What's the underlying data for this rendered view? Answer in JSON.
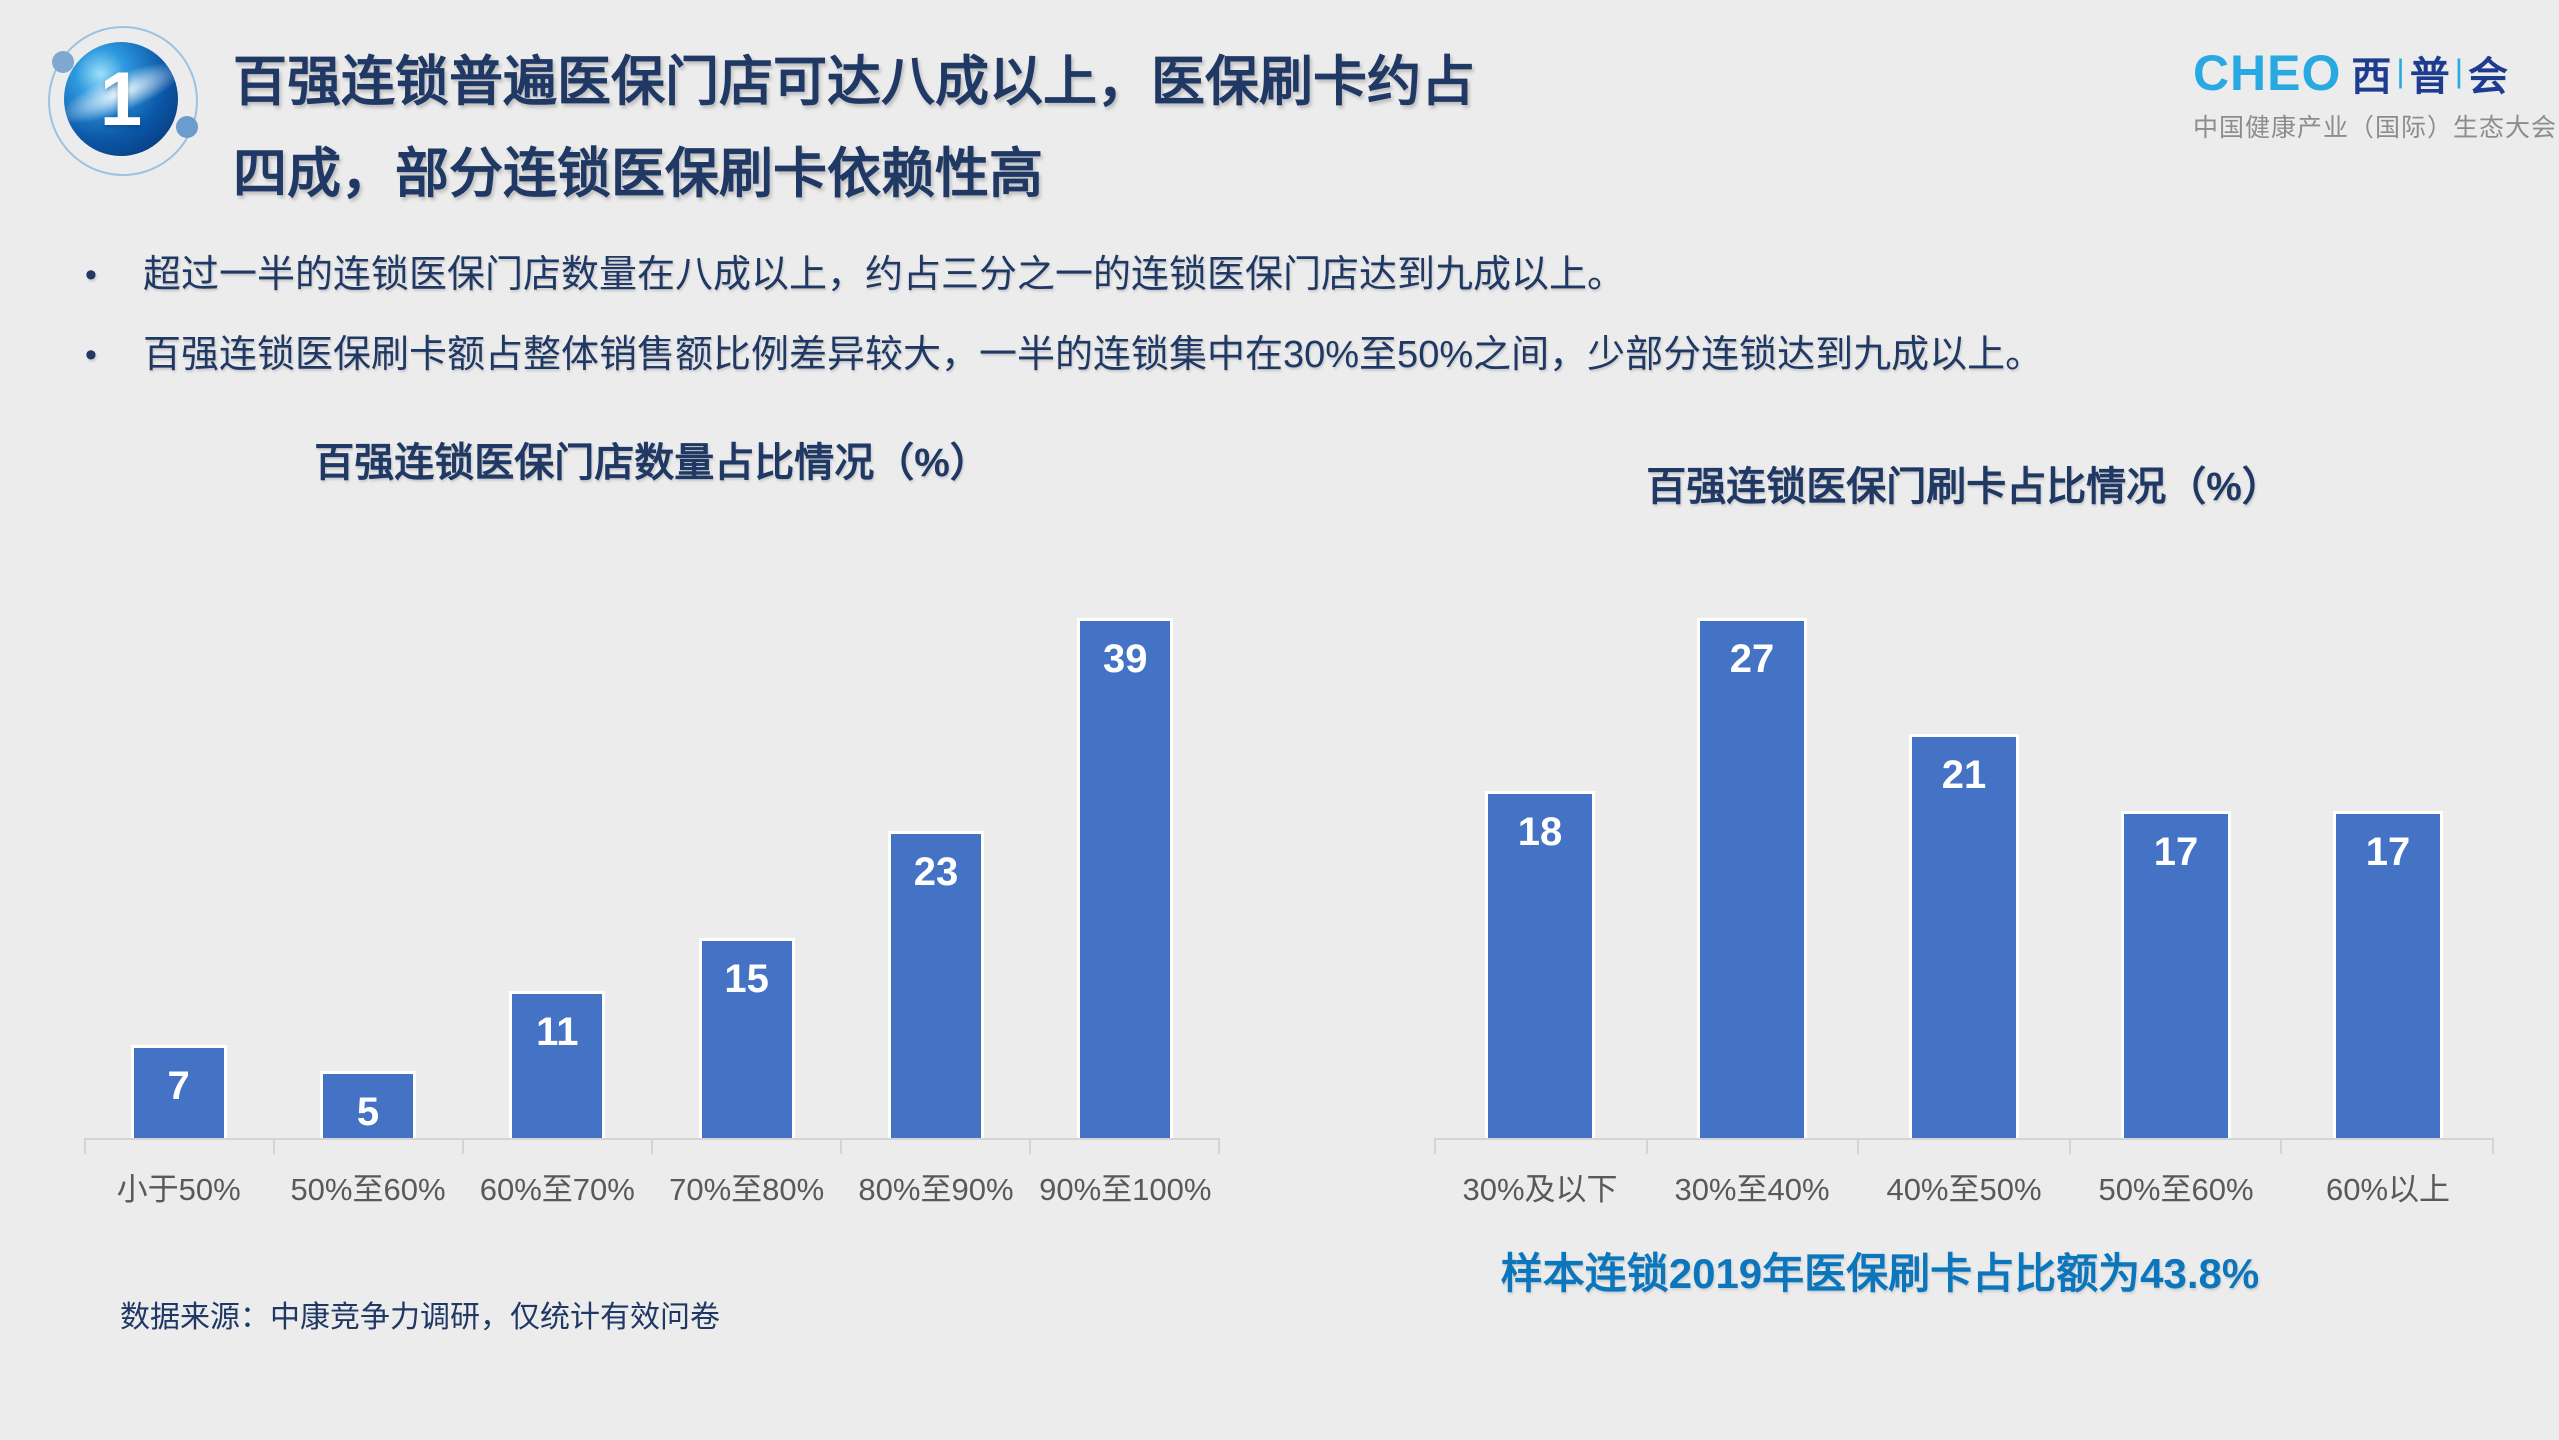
{
  "slide": {
    "badge_number": "1",
    "title_line1": "百强连锁普遍医保门店可达八成以上，医保刷卡约占",
    "title_line2": "四成，部分连锁医保刷卡依赖性高",
    "logo": {
      "latin": "CHEO",
      "cjk": [
        "西",
        "普",
        "会"
      ],
      "separator": "|",
      "subtitle": "中国健康产业（国际）生态大会"
    },
    "bullet_marker": "•",
    "bullets": [
      {
        "text": "超过一半的连锁医保门店数量在八成以上，约占三分之一的连锁医保门店达到九成以上。"
      },
      {
        "text": "百强连锁医保刷卡额占整体销售额比例差异较大，一半的连锁集中在30%至50%之间，少部分连锁达到九成以上。"
      }
    ],
    "annotation": "样本连锁2019年医保刷卡占比额为43.8%",
    "source": "数据来源：中康竞争力调研，仅统计有效问卷",
    "colors": {
      "background": "#ECECEC",
      "title_navy": "#1F3864",
      "bar_blue": "#4472C4",
      "annotation_blue": "#0C76BD",
      "axis_label_gray": "#595959",
      "logo_cyan": "#29A9E1",
      "logo_navy": "#1E3C8F"
    }
  },
  "chart_data": [
    {
      "type": "bar",
      "title": "百强连锁医保门店数量占比情况（%）",
      "categories": [
        "小于50%",
        "50%至60%",
        "60%至70%",
        "70%至80%",
        "80%至90%",
        "90%至100%"
      ],
      "values": [
        7,
        5,
        11,
        15,
        23,
        39
      ],
      "bar_color": "#4472C4",
      "data_labels": true,
      "ylim": [
        0,
        39
      ],
      "grid": false,
      "legend": "none"
    },
    {
      "type": "bar",
      "title": "百强连锁医保门刷卡占比情况（%）",
      "categories": [
        "30%及以下",
        "30%至40%",
        "40%至50%",
        "50%至60%",
        "60%以上"
      ],
      "values": [
        18,
        27,
        21,
        17,
        17
      ],
      "bar_color": "#4472C4",
      "data_labels": true,
      "ylim": [
        0,
        27
      ],
      "grid": false,
      "legend": "none"
    }
  ]
}
